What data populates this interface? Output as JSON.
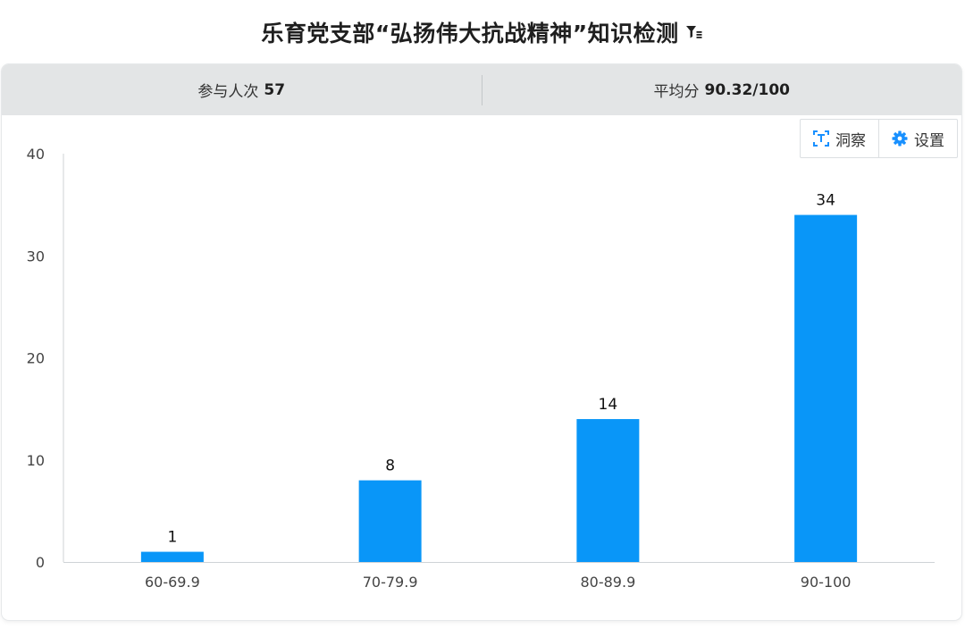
{
  "title": "乐育党支部“弘扬伟大抗战精神”知识检测",
  "stats": {
    "participants_label": "参与人次",
    "participants_value": "57",
    "average_label": "平均分",
    "average_value": "90.32/100"
  },
  "toolbar": {
    "insight_label": "洞察",
    "settings_label": "设置"
  },
  "icons": {
    "filter": "filter-list-icon",
    "insight": "text-insight-icon",
    "settings": "gear-icon"
  },
  "colors": {
    "bar": "#0996f8",
    "stats_bg": "#e3e5e6",
    "accent": "#1890ff"
  },
  "chart_data": {
    "type": "bar",
    "categories": [
      "60-69.9",
      "70-79.9",
      "80-89.9",
      "90-100"
    ],
    "values": [
      1,
      8,
      14,
      34
    ],
    "title": "",
    "xlabel": "",
    "ylabel": "",
    "ylim": [
      0,
      40
    ],
    "yticks": [
      0,
      10,
      20,
      30,
      40
    ],
    "data_labels": true,
    "grid": false,
    "legend": "none"
  }
}
